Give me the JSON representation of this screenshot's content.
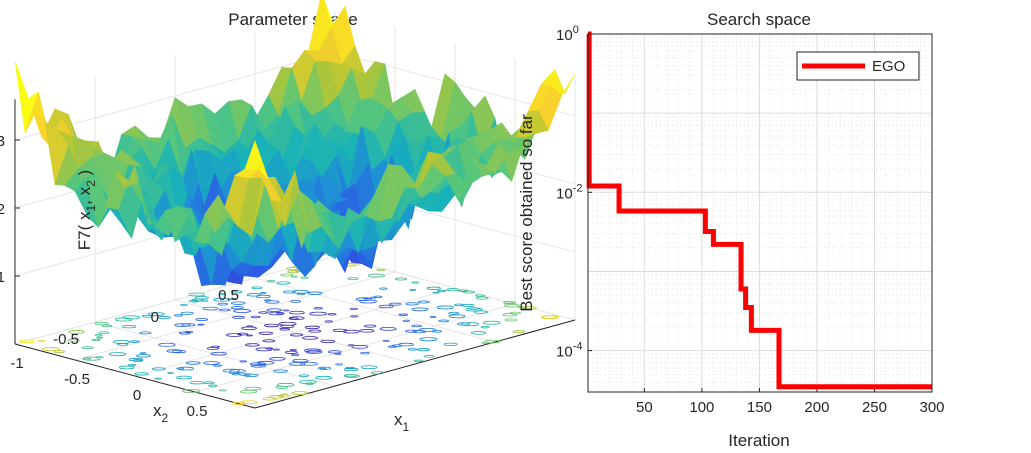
{
  "chart_data": [
    {
      "type": "surface3d",
      "title": "Parameter space",
      "xlabel": "x",
      "xlabel_sub": "1",
      "ylabel": "x",
      "ylabel_sub": "2",
      "zlabel_prefix": "F7( x",
      "zlabel_sub1": "1",
      "zlabel_mid": ", x",
      "zlabel_sub2": "2",
      "zlabel_suffix": " )",
      "x_ticks": [
        "-1",
        "-0.5",
        "0",
        "0.5"
      ],
      "y_ticks": [
        "-1",
        "-0.5",
        "0",
        "0.5"
      ],
      "z_ticks": [
        "1",
        "2",
        "3"
      ],
      "xlim": [
        -1,
        1
      ],
      "ylim": [
        -1,
        1
      ],
      "zlim": [
        0,
        3.6
      ],
      "colormap": [
        "#3e26a8",
        "#2f55e6",
        "#1f8ad8",
        "#19b2b8",
        "#56c67c",
        "#b4c635",
        "#f9d12c",
        "#f9fb14"
      ]
    },
    {
      "type": "line",
      "title": "Search space",
      "xlabel": "Iteration",
      "ylabel": "Best score obtained so far",
      "yscale": "log",
      "xlim": [
        1,
        300
      ],
      "ylim": [
        3e-05,
        1
      ],
      "x_ticks": [
        50,
        100,
        150,
        200,
        250,
        300
      ],
      "y_ticks": [
        {
          "base": "10",
          "exp": "0",
          "value": 1
        },
        {
          "base": "10",
          "exp": "-2",
          "value": 0.01
        },
        {
          "base": "10",
          "exp": "-4",
          "value": 0.0001
        }
      ],
      "grid": true,
      "legend_position": "top-right",
      "series": [
        {
          "name": "EGO",
          "color": "#ff0000",
          "steps": [
            [
              1,
              1
            ],
            [
              2,
              0.012
            ],
            [
              28,
              0.0058
            ],
            [
              103,
              0.0032
            ],
            [
              110,
              0.0022
            ],
            [
              124,
              0.0022
            ],
            [
              134,
              0.0006
            ],
            [
              138,
              0.00035
            ],
            [
              143,
              0.00018
            ],
            [
              167,
              3.5e-05
            ],
            [
              300,
              3.5e-05
            ]
          ]
        }
      ]
    }
  ]
}
